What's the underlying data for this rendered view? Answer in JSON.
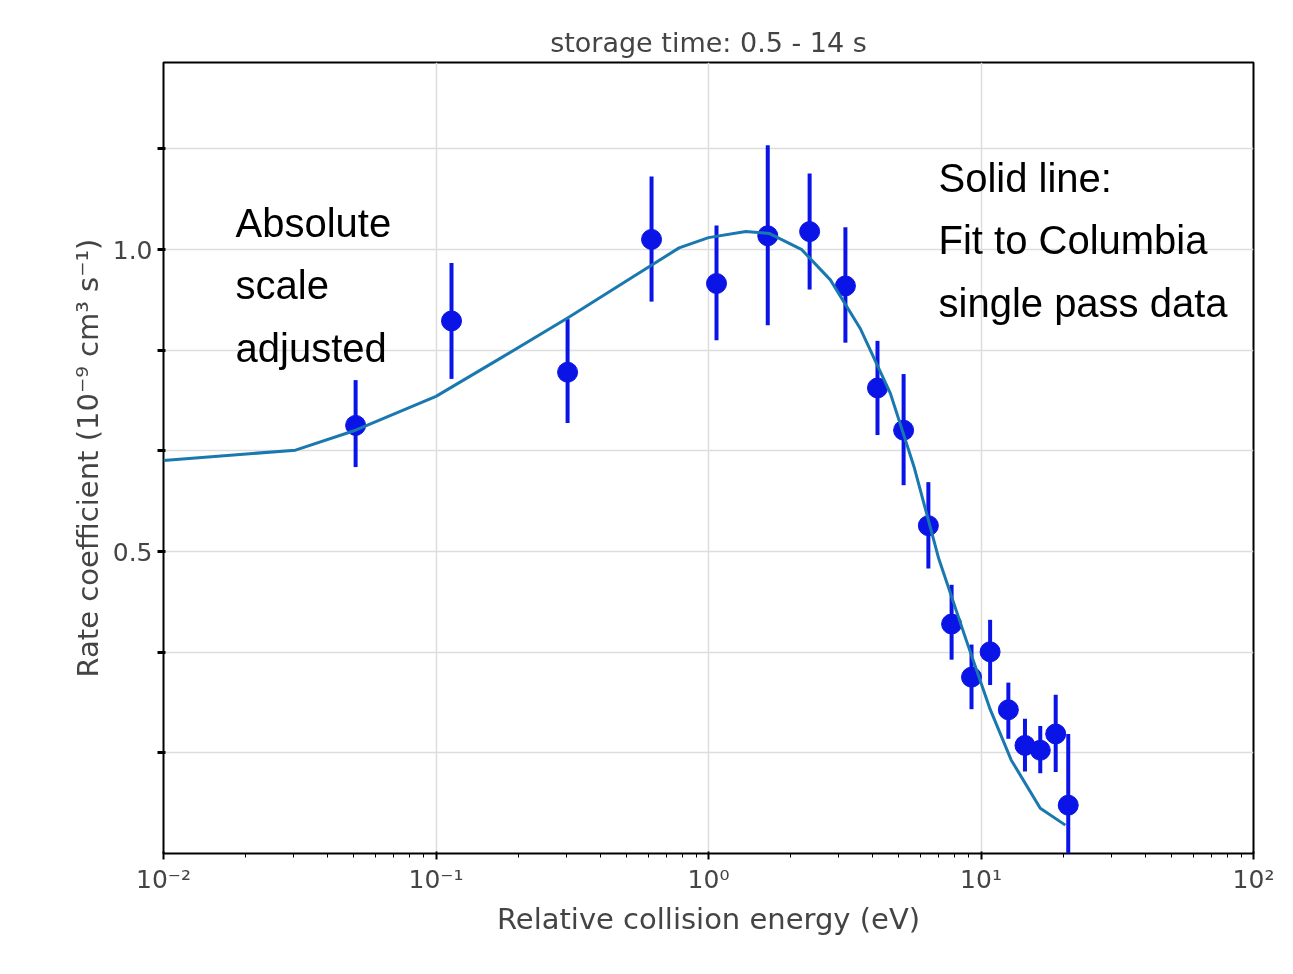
{
  "chart_data": {
    "type": "scatter",
    "title": "storage time: 0.5 - 14 s",
    "xlabel": "Relative collision energy (eV)",
    "ylabel": "Rate coefficient (10⁻⁹ cm³ s⁻¹)",
    "annotations": [
      "Absolute\nscale\nadjusted",
      "Solid line:\nFit to Columbia\nsingle pass data"
    ],
    "log": "x",
    "grid": true,
    "marker": "circle",
    "xlim": [
      0.01,
      100
    ],
    "xticks": [
      {
        "value": 0.01,
        "label": "10⁻²"
      },
      {
        "value": 0.1,
        "label": "10⁻¹"
      },
      {
        "value": 1,
        "label": "10⁰"
      },
      {
        "value": 10,
        "label": "10¹"
      },
      {
        "value": 100,
        "label": "10²"
      }
    ],
    "ylim": [
      0,
      1.31
    ],
    "yticks": [
      {
        "value": 0.167,
        "label": null
      },
      {
        "value": 0.333,
        "label": null
      },
      {
        "value": 0.5,
        "label": "0.5"
      },
      {
        "value": 0.667,
        "label": null
      },
      {
        "value": 0.833,
        "label": null
      },
      {
        "value": 1.0,
        "label": "1.0"
      },
      {
        "value": 1.167,
        "label": null
      }
    ],
    "series": [
      {
        "color": "#0a14e6",
        "x": [
          0.0507,
          0.114,
          0.304,
          0.618,
          1.07,
          1.65,
          2.35,
          3.18,
          4.17,
          5.2,
          6.41,
          7.8,
          9.23,
          10.8,
          12.6,
          14.5,
          16.5,
          18.8,
          20.9
        ],
        "values": [
          0.709,
          0.882,
          0.797,
          1.017,
          0.944,
          1.023,
          1.03,
          0.94,
          0.771,
          0.701,
          0.543,
          0.38,
          0.292,
          0.334,
          0.238,
          0.179,
          0.171,
          0.198,
          0.08
        ],
        "errors": [
          [
            0.64,
            0.784
          ],
          [
            0.786,
            0.978
          ],
          [
            0.713,
            0.885
          ],
          [
            0.914,
            1.121
          ],
          [
            0.85,
            1.04
          ],
          [
            0.875,
            1.173
          ],
          [
            0.934,
            1.126
          ],
          [
            0.846,
            1.037
          ],
          [
            0.693,
            0.849
          ],
          [
            0.61,
            0.794
          ],
          [
            0.472,
            0.615
          ],
          [
            0.321,
            0.445
          ],
          [
            0.239,
            0.346
          ],
          [
            0.279,
            0.387
          ],
          [
            0.19,
            0.283
          ],
          [
            0.136,
            0.223
          ],
          [
            0.133,
            0.211
          ],
          [
            0.135,
            0.263
          ],
          [
            0.0,
            0.198
          ]
        ]
      },
      {
        "type": "line",
        "color": "#1a78b0",
        "line_style": "solid",
        "marker": "none",
        "x": [
          0.01,
          0.0305,
          0.0507,
          0.1,
          0.172,
          0.304,
          0.52,
          0.78,
          1.0,
          1.37,
          1.67,
          2.2,
          2.8,
          3.6,
          4.65,
          5.7,
          7.0,
          8.8,
          10.8,
          12.9,
          16.5,
          20.4
        ],
        "values": [
          0.651,
          0.668,
          0.701,
          0.757,
          0.82,
          0.887,
          0.953,
          1.003,
          1.02,
          1.03,
          1.027,
          1.0,
          0.95,
          0.87,
          0.762,
          0.638,
          0.488,
          0.355,
          0.239,
          0.155,
          0.075,
          0.047
        ]
      }
    ]
  }
}
